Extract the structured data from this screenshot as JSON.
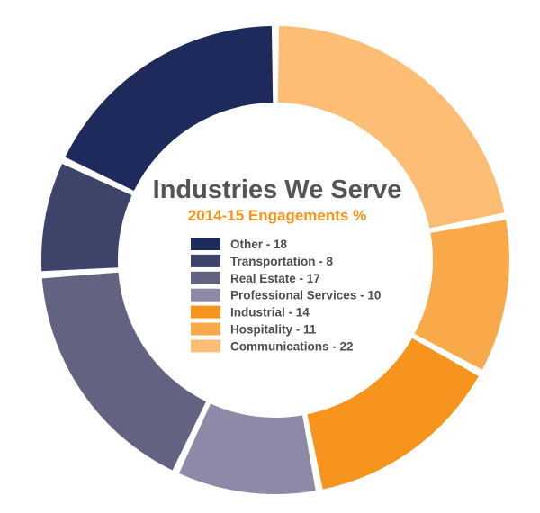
{
  "chart_data": {
    "type": "pie",
    "variant": "donut",
    "title": "Industries We Serve",
    "subtitle": "2014-15 Engagements %",
    "legend_position": "center",
    "slices": [
      {
        "label": "Communications - 22",
        "name": "Communications",
        "value": 22,
        "color": "#FDBD74"
      },
      {
        "label": "Hospitality - 11",
        "name": "Hospitality",
        "value": 11,
        "color": "#FAA94A"
      },
      {
        "label": "Industrial - 14",
        "name": "Industrial",
        "value": 14,
        "color": "#F7941D"
      },
      {
        "label": "Professional Services - 10",
        "name": "Professional Services",
        "value": 10,
        "color": "#8C8AA6"
      },
      {
        "label": "Real Estate - 17",
        "name": "Real Estate",
        "value": 17,
        "color": "#636281"
      },
      {
        "label": "Transportation - 8",
        "name": "Transportation",
        "value": 8,
        "color": "#3D4369"
      },
      {
        "label": "Other - 18",
        "name": "Other",
        "value": 18,
        "color": "#1D2A5B"
      }
    ],
    "legend_order": [
      "Other",
      "Transportation",
      "Real Estate",
      "Professional Services",
      "Industrial",
      "Hospitality",
      "Communications"
    ]
  }
}
